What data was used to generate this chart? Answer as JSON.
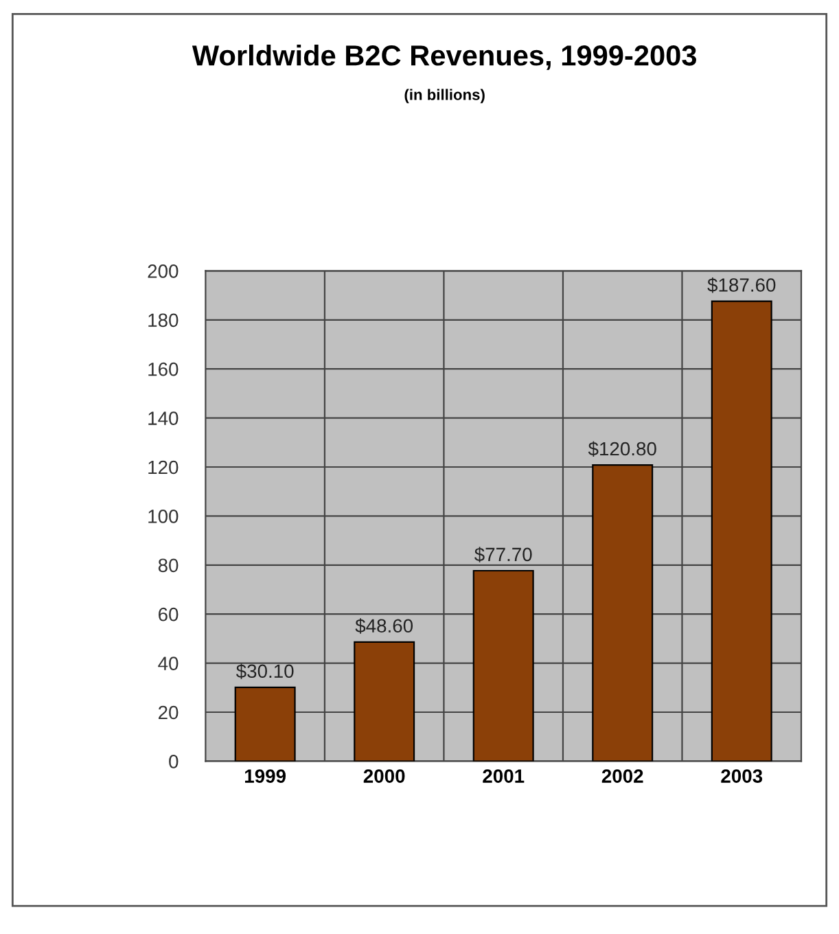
{
  "chart_data": {
    "type": "bar",
    "title": "Worldwide B2C Revenues, 1999-2003",
    "subtitle": "(in billions)",
    "categories": [
      "1999",
      "2000",
      "2001",
      "2002",
      "2003"
    ],
    "values": [
      30.1,
      48.6,
      77.7,
      120.8,
      187.6
    ],
    "value_labels": [
      "$30.10",
      "$48.60",
      "$77.70",
      "$120.80",
      "$187.60"
    ],
    "color": "#8b4008",
    "ylim": [
      0,
      200
    ],
    "yticks": [
      0,
      20,
      40,
      60,
      80,
      100,
      120,
      140,
      160,
      180,
      200
    ],
    "grid": true
  }
}
